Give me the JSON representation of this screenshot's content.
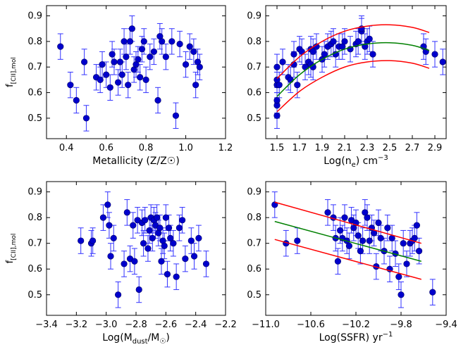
{
  "chart_data": [
    {
      "type": "scatter",
      "panel": "top-left",
      "xlabel": "Metallicity (Z/Z☉)",
      "ylabel": "f[CII],mol",
      "xlim": [
        0.3,
        1.2
      ],
      "ylim": [
        0.42,
        0.94
      ],
      "xticks": [
        "0.4",
        "0.6",
        "0.8",
        "1.0",
        "1.2"
      ],
      "yticks": [
        "0.5",
        "0.6",
        "0.7",
        "0.8",
        "0.9"
      ],
      "series": [
        {
          "name": "points",
          "x": [
            0.37,
            0.42,
            0.45,
            0.49,
            0.5,
            0.55,
            0.57,
            0.58,
            0.6,
            0.62,
            0.63,
            0.64,
            0.66,
            0.67,
            0.68,
            0.69,
            0.7,
            0.71,
            0.72,
            0.73,
            0.74,
            0.75,
            0.76,
            0.77,
            0.78,
            0.79,
            0.8,
            0.82,
            0.84,
            0.86,
            0.87,
            0.88,
            0.9,
            0.93,
            0.95,
            0.97,
            1.0,
            1.02,
            1.04,
            1.05,
            1.06,
            1.07
          ],
          "y": [
            0.78,
            0.63,
            0.57,
            0.72,
            0.5,
            0.66,
            0.65,
            0.71,
            0.67,
            0.62,
            0.75,
            0.72,
            0.64,
            0.72,
            0.67,
            0.8,
            0.74,
            0.63,
            0.8,
            0.85,
            0.69,
            0.71,
            0.73,
            0.66,
            0.77,
            0.8,
            0.65,
            0.74,
            0.76,
            0.57,
            0.82,
            0.8,
            0.74,
            0.8,
            0.51,
            0.79,
            0.71,
            0.78,
            0.76,
            0.63,
            0.72,
            0.7
          ],
          "yerr": 0.05
        }
      ]
    },
    {
      "type": "scatter",
      "panel": "top-right",
      "xlabel": "Log(n",
      "xlabel_sub": "e",
      "xlabel_tail": ") cm",
      "xlabel_sup": "−3",
      "xlim": [
        1.4,
        3.0
      ],
      "ylim": [
        0.42,
        0.94
      ],
      "xticks": [
        "1.5",
        "1.7",
        "1.9",
        "2.1",
        "2.3",
        "2.5",
        "2.7",
        "2.9"
      ],
      "yticks": [
        "0.5",
        "0.6",
        "0.7",
        "0.8",
        "0.9"
      ],
      "series": [
        {
          "name": "points",
          "x": [
            1.5,
            1.5,
            1.5,
            1.5,
            1.5,
            1.5,
            1.52,
            1.55,
            1.6,
            1.62,
            1.65,
            1.65,
            1.68,
            1.7,
            1.72,
            1.75,
            1.78,
            1.8,
            1.8,
            1.82,
            1.82,
            1.85,
            1.9,
            1.92,
            1.95,
            1.98,
            2.0,
            2.02,
            2.05,
            2.08,
            2.1,
            2.15,
            2.2,
            2.22,
            2.25,
            2.25,
            2.28,
            2.3,
            2.32,
            2.35,
            2.8,
            2.82,
            2.9,
            2.97
          ],
          "y": [
            0.51,
            0.55,
            0.57,
            0.63,
            0.65,
            0.7,
            0.63,
            0.72,
            0.66,
            0.65,
            0.71,
            0.75,
            0.63,
            0.77,
            0.76,
            0.7,
            0.72,
            0.71,
            0.77,
            0.7,
            0.76,
            0.78,
            0.73,
            0.75,
            0.78,
            0.79,
            0.8,
            0.75,
            0.78,
            0.78,
            0.8,
            0.77,
            0.79,
            0.8,
            0.84,
            0.85,
            0.78,
            0.8,
            0.81,
            0.75,
            0.78,
            0.76,
            0.75,
            0.72
          ],
          "yerr": 0.05
        },
        {
          "name": "fit",
          "color": "#008000",
          "x": [
            1.5,
            1.7,
            1.9,
            2.1,
            2.3,
            2.5,
            2.7,
            2.85
          ],
          "y": [
            0.585,
            0.67,
            0.73,
            0.77,
            0.79,
            0.795,
            0.785,
            0.765
          ]
        },
        {
          "name": "upper",
          "color": "#ff0000",
          "x": [
            1.5,
            1.7,
            1.9,
            2.1,
            2.3,
            2.5,
            2.7,
            2.85
          ],
          "y": [
            0.655,
            0.74,
            0.8,
            0.84,
            0.86,
            0.865,
            0.855,
            0.835
          ]
        },
        {
          "name": "lower",
          "color": "#ff0000",
          "x": [
            1.5,
            1.7,
            1.9,
            2.1,
            2.3,
            2.5,
            2.7,
            2.85
          ],
          "y": [
            0.525,
            0.605,
            0.66,
            0.7,
            0.72,
            0.725,
            0.715,
            0.695
          ]
        }
      ]
    },
    {
      "type": "scatter",
      "panel": "bottom-left",
      "xlabel": "Log(M",
      "xlabel_sub": "dust",
      "xlabel_tail": "/M",
      "xlabel_sub2": "☉",
      "ylabel": "f[CII],mol",
      "xlim": [
        -3.4,
        -2.2
      ],
      "ylim": [
        0.42,
        0.94
      ],
      "xticks": [
        "−3.4",
        "−3.2",
        "−3.0",
        "−2.8",
        "−2.6",
        "−2.4",
        "−2.2"
      ],
      "yticks": [
        "0.5",
        "0.6",
        "0.7",
        "0.8",
        "0.9"
      ],
      "series": [
        {
          "name": "points",
          "x": [
            -3.17,
            -3.1,
            -3.09,
            -3.02,
            -2.99,
            -2.98,
            -2.97,
            -2.95,
            -2.92,
            -2.88,
            -2.86,
            -2.84,
            -2.82,
            -2.81,
            -2.79,
            -2.78,
            -2.76,
            -2.75,
            -2.74,
            -2.72,
            -2.71,
            -2.7,
            -2.69,
            -2.68,
            -2.67,
            -2.66,
            -2.65,
            -2.64,
            -2.63,
            -2.62,
            -2.61,
            -2.6,
            -2.59,
            -2.58,
            -2.57,
            -2.55,
            -2.53,
            -2.51,
            -2.49,
            -2.47,
            -2.43,
            -2.41,
            -2.38,
            -2.33
          ],
          "y": [
            0.71,
            0.7,
            0.71,
            0.8,
            0.85,
            0.77,
            0.65,
            0.72,
            0.5,
            0.62,
            0.82,
            0.64,
            0.77,
            0.63,
            0.79,
            0.52,
            0.78,
            0.7,
            0.79,
            0.68,
            0.75,
            0.8,
            0.72,
            0.79,
            0.77,
            0.8,
            0.74,
            0.76,
            0.63,
            0.71,
            0.69,
            0.8,
            0.58,
            0.76,
            0.72,
            0.7,
            0.57,
            0.76,
            0.79,
            0.64,
            0.71,
            0.65,
            0.72,
            0.62
          ],
          "yerr": 0.05
        }
      ]
    },
    {
      "type": "scatter",
      "panel": "bottom-right",
      "xlabel": "Log(SSFR) yr",
      "xlabel_sup": "−1",
      "xlim": [
        -11.0,
        -9.4
      ],
      "ylim": [
        0.42,
        0.94
      ],
      "xticks": [
        "−11.0",
        "−10.6",
        "−10.2",
        "−9.8",
        "−9.4"
      ],
      "yticks": [
        "0.5",
        "0.6",
        "0.7",
        "0.8",
        "0.9"
      ],
      "series": [
        {
          "name": "points",
          "x": [
            -10.92,
            -10.82,
            -10.72,
            -10.45,
            -10.4,
            -10.38,
            -10.36,
            -10.34,
            -10.32,
            -10.3,
            -10.28,
            -10.26,
            -10.24,
            -10.22,
            -10.2,
            -10.18,
            -10.16,
            -10.14,
            -10.12,
            -10.1,
            -10.08,
            -10.06,
            -10.04,
            -10.02,
            -10.0,
            -9.98,
            -9.95,
            -9.92,
            -9.9,
            -9.88,
            -9.85,
            -9.82,
            -9.8,
            -9.78,
            -9.75,
            -9.72,
            -9.7,
            -9.68,
            -9.66,
            -9.64,
            -9.52
          ],
          "y": [
            0.85,
            0.7,
            0.71,
            0.82,
            0.8,
            0.72,
            0.63,
            0.75,
            0.72,
            0.8,
            0.71,
            0.69,
            0.79,
            0.76,
            0.78,
            0.73,
            0.67,
            0.71,
            0.82,
            0.8,
            0.71,
            0.76,
            0.74,
            0.61,
            0.78,
            0.72,
            0.67,
            0.76,
            0.6,
            0.72,
            0.66,
            0.57,
            0.5,
            0.7,
            0.62,
            0.7,
            0.71,
            0.72,
            0.77,
            0.67,
            0.51
          ],
          "yerr": 0.05
        },
        {
          "name": "fit",
          "color": "#008000",
          "x": [
            -10.92,
            -9.62
          ],
          "y": [
            0.785,
            0.63
          ]
        },
        {
          "name": "upper",
          "color": "#ff0000",
          "x": [
            -10.92,
            -9.62
          ],
          "y": [
            0.86,
            0.7
          ]
        },
        {
          "name": "lower",
          "color": "#ff0000",
          "x": [
            -10.92,
            -9.62
          ],
          "y": [
            0.715,
            0.56
          ]
        }
      ]
    }
  ],
  "colors": {
    "points": "#0000cc",
    "errorbars": "#3333ff",
    "fit": "#008000",
    "bounds": "#ff0000"
  }
}
